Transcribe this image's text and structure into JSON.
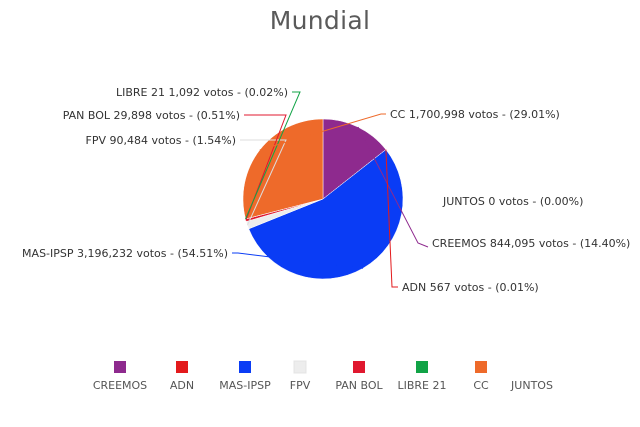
{
  "chart_data": {
    "type": "pie",
    "title": "Mundial",
    "unit_label": "votos",
    "series": [
      {
        "name": "CREEMOS",
        "value": 844095,
        "display_value": "844,095",
        "percent": "14.40%",
        "color": "#8E2A8E"
      },
      {
        "name": "ADN",
        "value": 567,
        "display_value": "567",
        "percent": "0.01%",
        "color": "#E31A1C"
      },
      {
        "name": "MAS-IPSP",
        "value": 3196232,
        "display_value": "3,196,232",
        "percent": "54.51%",
        "color": "#0A3CF5"
      },
      {
        "name": "FPV",
        "value": 90484,
        "display_value": "90,484",
        "percent": "1.54%",
        "color": "#EDEDED"
      },
      {
        "name": "PAN BOL",
        "value": 29898,
        "display_value": "29,898",
        "percent": "0.51%",
        "color": "#E0182F"
      },
      {
        "name": "LIBRE 21",
        "value": 1092,
        "display_value": "1,092",
        "percent": "0.02%",
        "color": "#11A346"
      },
      {
        "name": "CC",
        "value": 1700998,
        "display_value": "1,700,998",
        "percent": "29.01%",
        "color": "#EE6A2A"
      },
      {
        "name": "JUNTOS",
        "value": 0,
        "display_value": "0",
        "percent": "0.00%",
        "color": "#BBBBBB"
      }
    ],
    "legend_position": "bottom",
    "start_angle_deg": 90,
    "direction": "clockwise"
  }
}
